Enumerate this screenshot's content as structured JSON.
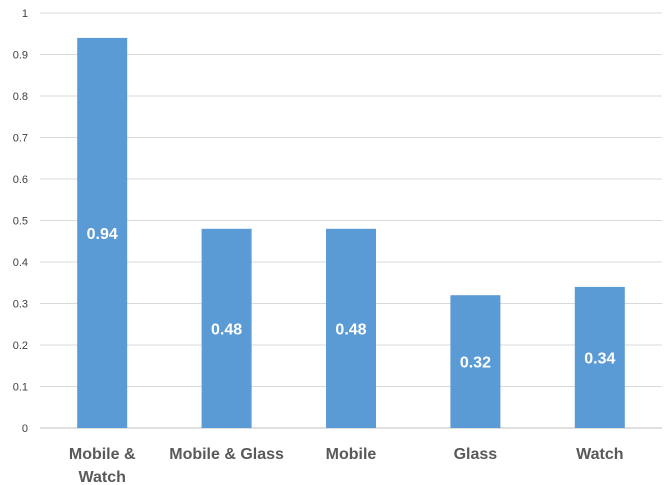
{
  "chart_data": {
    "type": "bar",
    "title": "",
    "xlabel": "",
    "ylabel": "",
    "categories": [
      [
        "Mobile &",
        "Watch"
      ],
      [
        "Mobile & Glass"
      ],
      [
        "Mobile"
      ],
      [
        "Glass"
      ],
      [
        "Watch"
      ]
    ],
    "values": [
      0.94,
      0.48,
      0.48,
      0.32,
      0.34
    ],
    "data_labels": [
      "0.94",
      "0.48",
      "0.48",
      "0.32",
      "0.34"
    ],
    "ylim": [
      0,
      1
    ],
    "yticks": [
      "0",
      "0.1",
      "0.2",
      "0.3",
      "0.4",
      "0.5",
      "0.6",
      "0.7",
      "0.8",
      "0.9",
      "1"
    ],
    "grid": true,
    "legend": "none",
    "colors": {
      "bar": "#5b9bd5",
      "grid": "#d9d9d9",
      "axis": "#bfbfbf",
      "data_label": "#ffffff"
    }
  }
}
